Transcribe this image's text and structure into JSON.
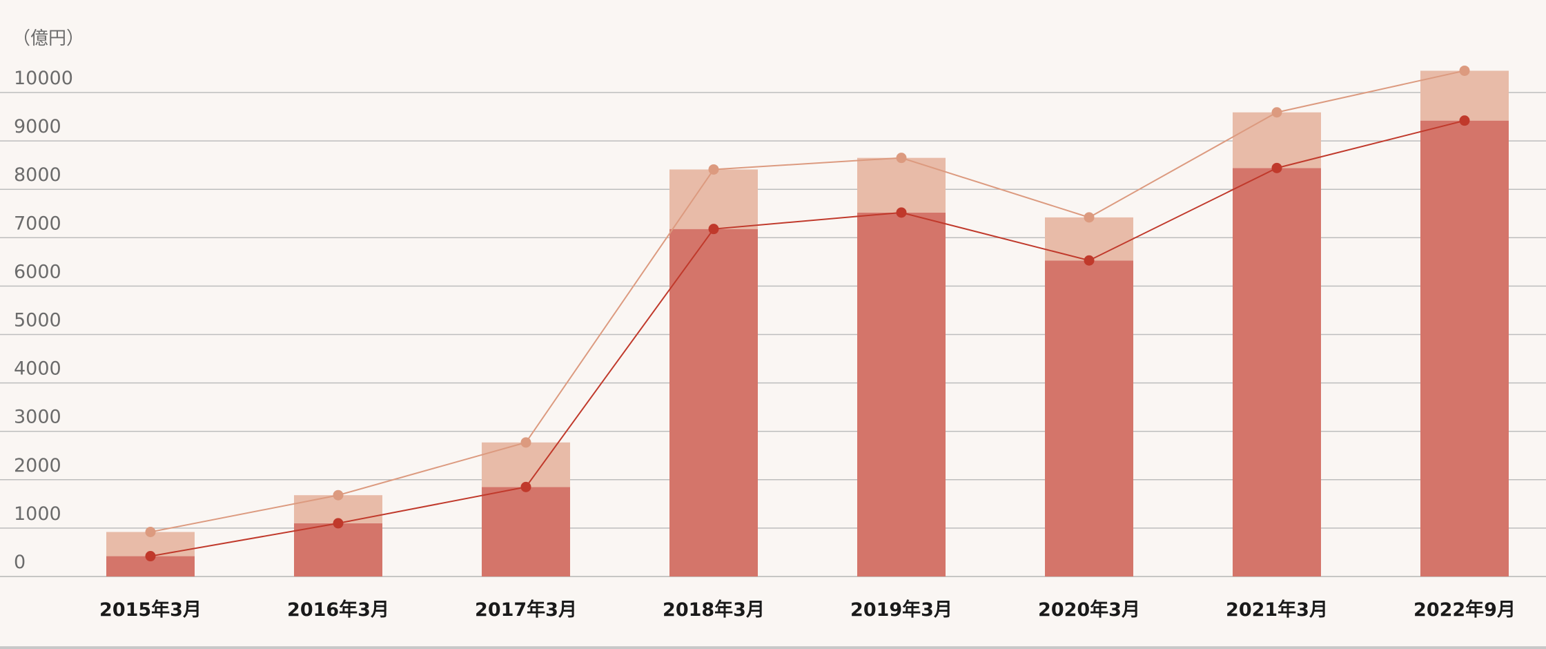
{
  "chart_data": {
    "type": "bar",
    "unit_label": "（億円）",
    "categories": [
      "2015年3月",
      "2016年3月",
      "2017年3月",
      "2018年3月",
      "2019年3月",
      "2020年3月",
      "2021年3月",
      "2022年9月"
    ],
    "y_ticks": [
      "0",
      "1000",
      "2000",
      "3000",
      "4000",
      "5000",
      "6000",
      "7000",
      "8000",
      "9000",
      "10000"
    ],
    "ylim": [
      0,
      10000
    ],
    "grid": true,
    "stacked": true,
    "series": [
      {
        "values": [
          420,
          1100,
          1850,
          7180,
          7520,
          6530,
          8440,
          9420
        ],
        "color": "#d4756a",
        "line_color": "#c0392b",
        "render": "bar+line"
      },
      {
        "values": [
          500,
          580,
          920,
          1230,
          1130,
          890,
          1150,
          1030
        ],
        "color": "#e8bba8",
        "line_color": "#dc9a7f",
        "render": "bar+line-cumulative"
      }
    ]
  }
}
